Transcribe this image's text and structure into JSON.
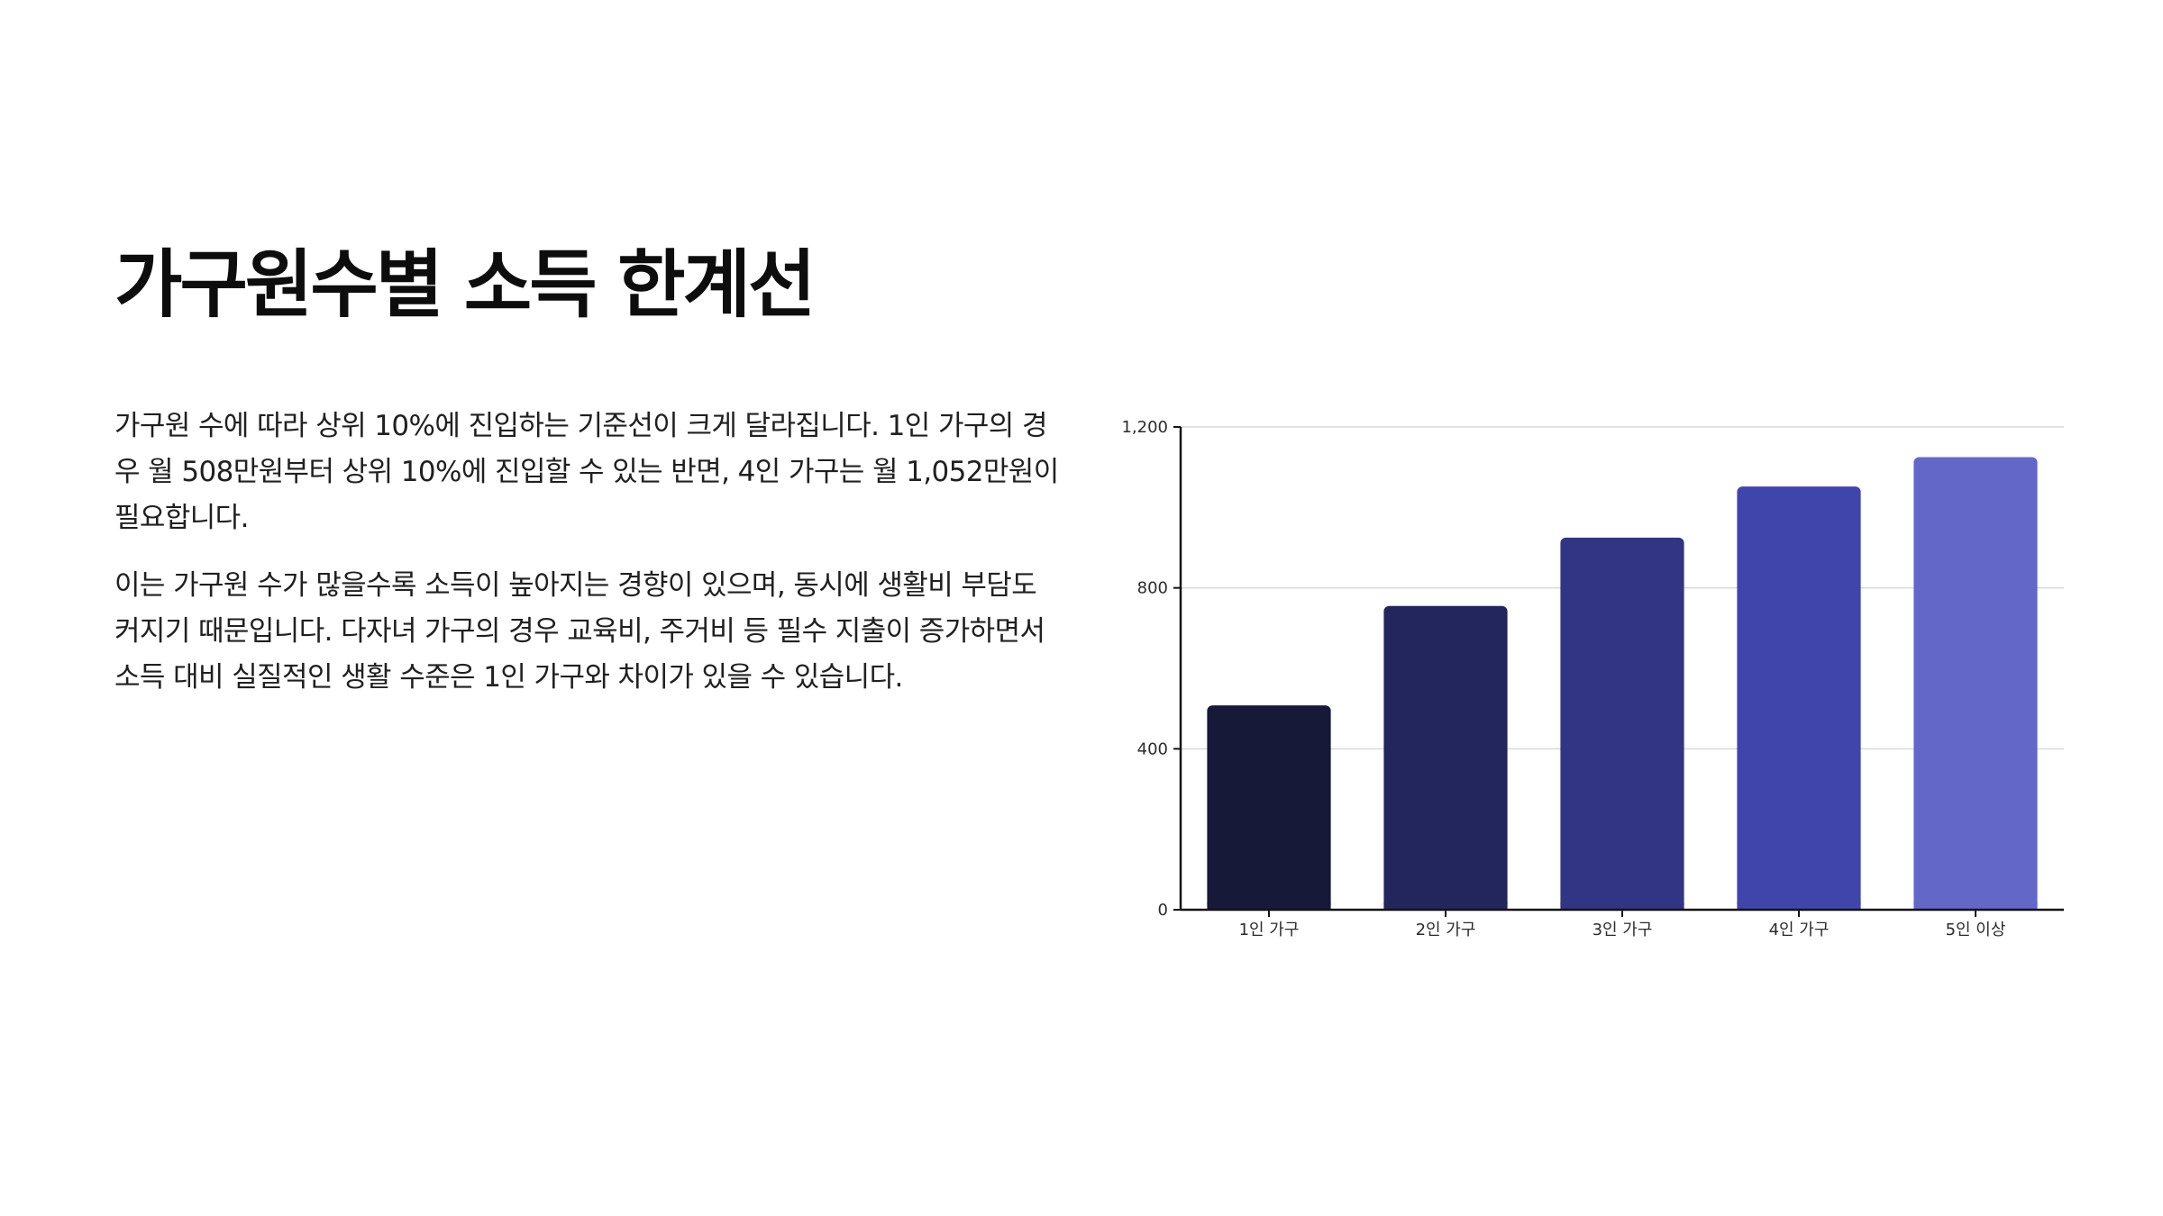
{
  "slide": {
    "title": "가구원수별 소득 한계선",
    "paragraphs": [
      "가구원 수에 따라 상위 10%에 진입하는 기준선이 크게 달라집니다. 1인 가구의 경우 월 508만원부터 상위 10%에 진입할 수 있는 반면, 4인 가구는 월 1,052만원이 필요합니다.",
      "이는 가구원 수가 많을수록 소득이 높아지는 경향이 있으며, 동시에 생활비 부담도 커지기 때문입니다. 다자녀 가구의 경우 교육비, 주거비 등 필수 지출이 증가하면서 소득 대비 실질적인 생활 수준은 1인 가구와 차이가 있을 수 있습니다."
    ]
  },
  "chart_data": {
    "type": "bar",
    "title": "",
    "xlabel": "",
    "ylabel": "",
    "categories": [
      "1인 가구",
      "2인 가구",
      "3인 가구",
      "4인 가구",
      "5인 이상"
    ],
    "values": [
      508,
      755,
      925,
      1052,
      1125
    ],
    "ylim": [
      0,
      1200
    ],
    "yticks": [
      0,
      400,
      800,
      1200
    ],
    "ytick_labels": [
      "0",
      "400",
      "800",
      "1,200"
    ],
    "grid": true,
    "legend": "none",
    "colors": [
      "#161938",
      "#22265c",
      "#313584",
      "#3f45aa",
      "#6367c8"
    ],
    "grid_color": "#d9d9d9",
    "axis_color": "#141414"
  }
}
